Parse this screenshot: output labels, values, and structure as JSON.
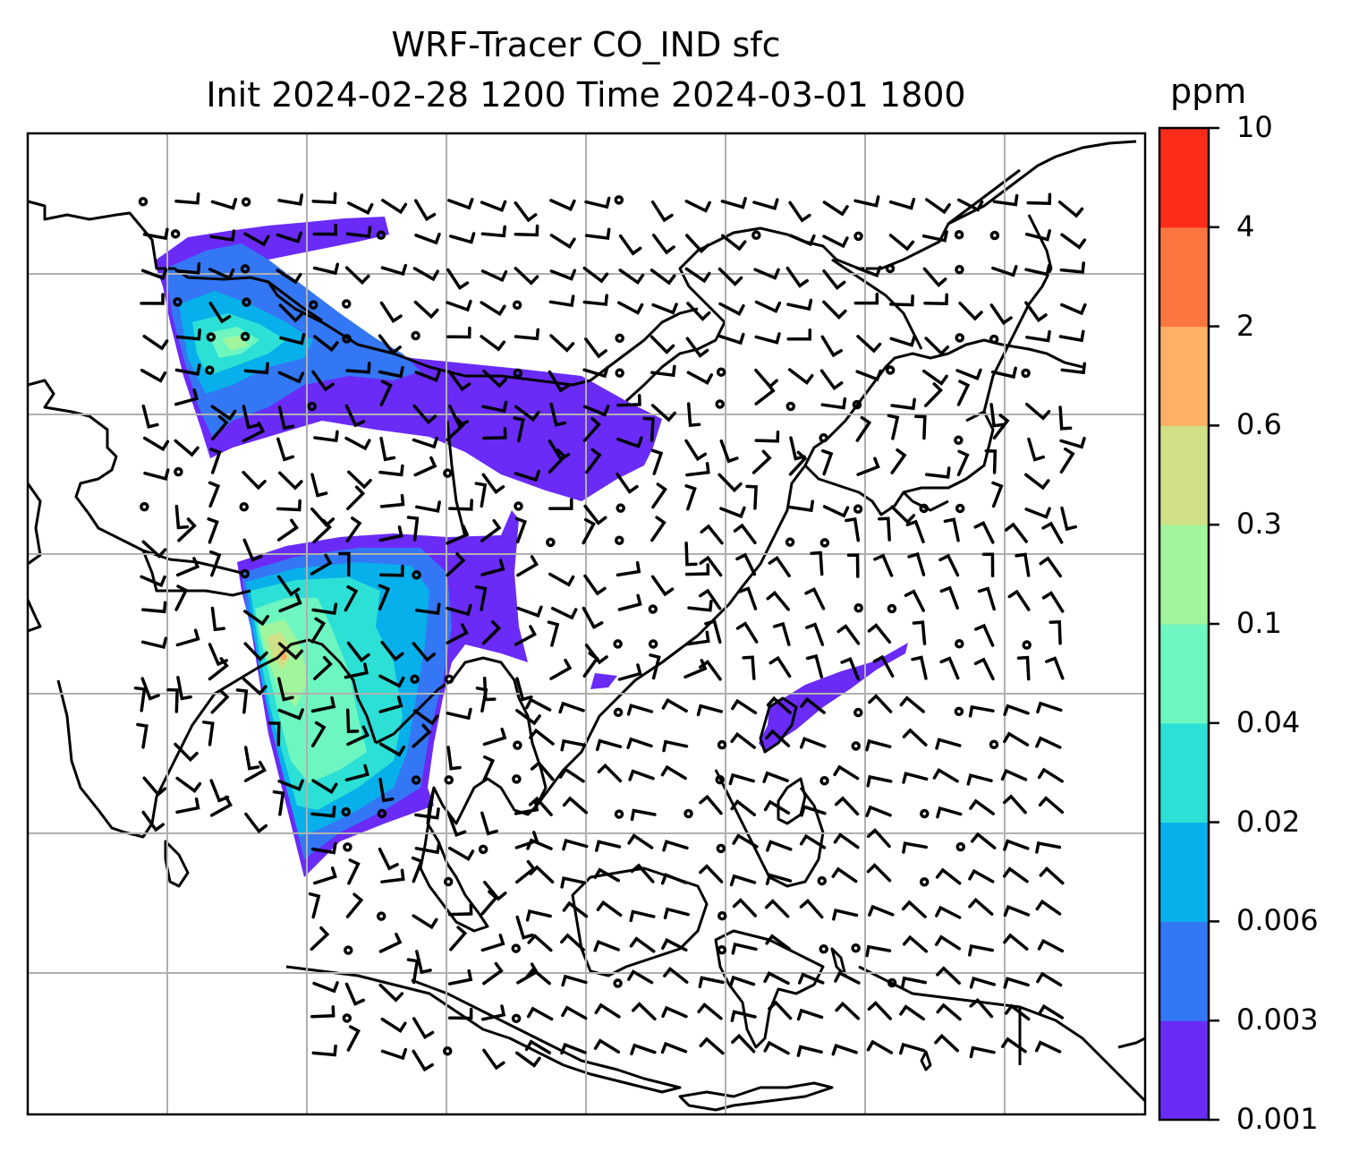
{
  "title_line1": "WRF-Tracer CO_IND sfc",
  "title_line2": "Init 2024-02-28 1200 Time 2024-03-01 1800",
  "colorbar": {
    "unit": "ppm",
    "levels": [
      "0.001",
      "0.003",
      "0.006",
      "0.02",
      "0.04",
      "0.1",
      "0.3",
      "0.6",
      "2",
      "4",
      "10"
    ],
    "colors": [
      "#6a2bf7",
      "#3477f5",
      "#07b0ea",
      "#2ce0d6",
      "#6ef6c0",
      "#a1f59c",
      "#cfe087",
      "#fdb164",
      "#fe7540",
      "#ff2c1b"
    ]
  },
  "map": {
    "type": "filled contour + wind barbs",
    "field": "CO_IND surface tracer",
    "gridlines": true
  }
}
